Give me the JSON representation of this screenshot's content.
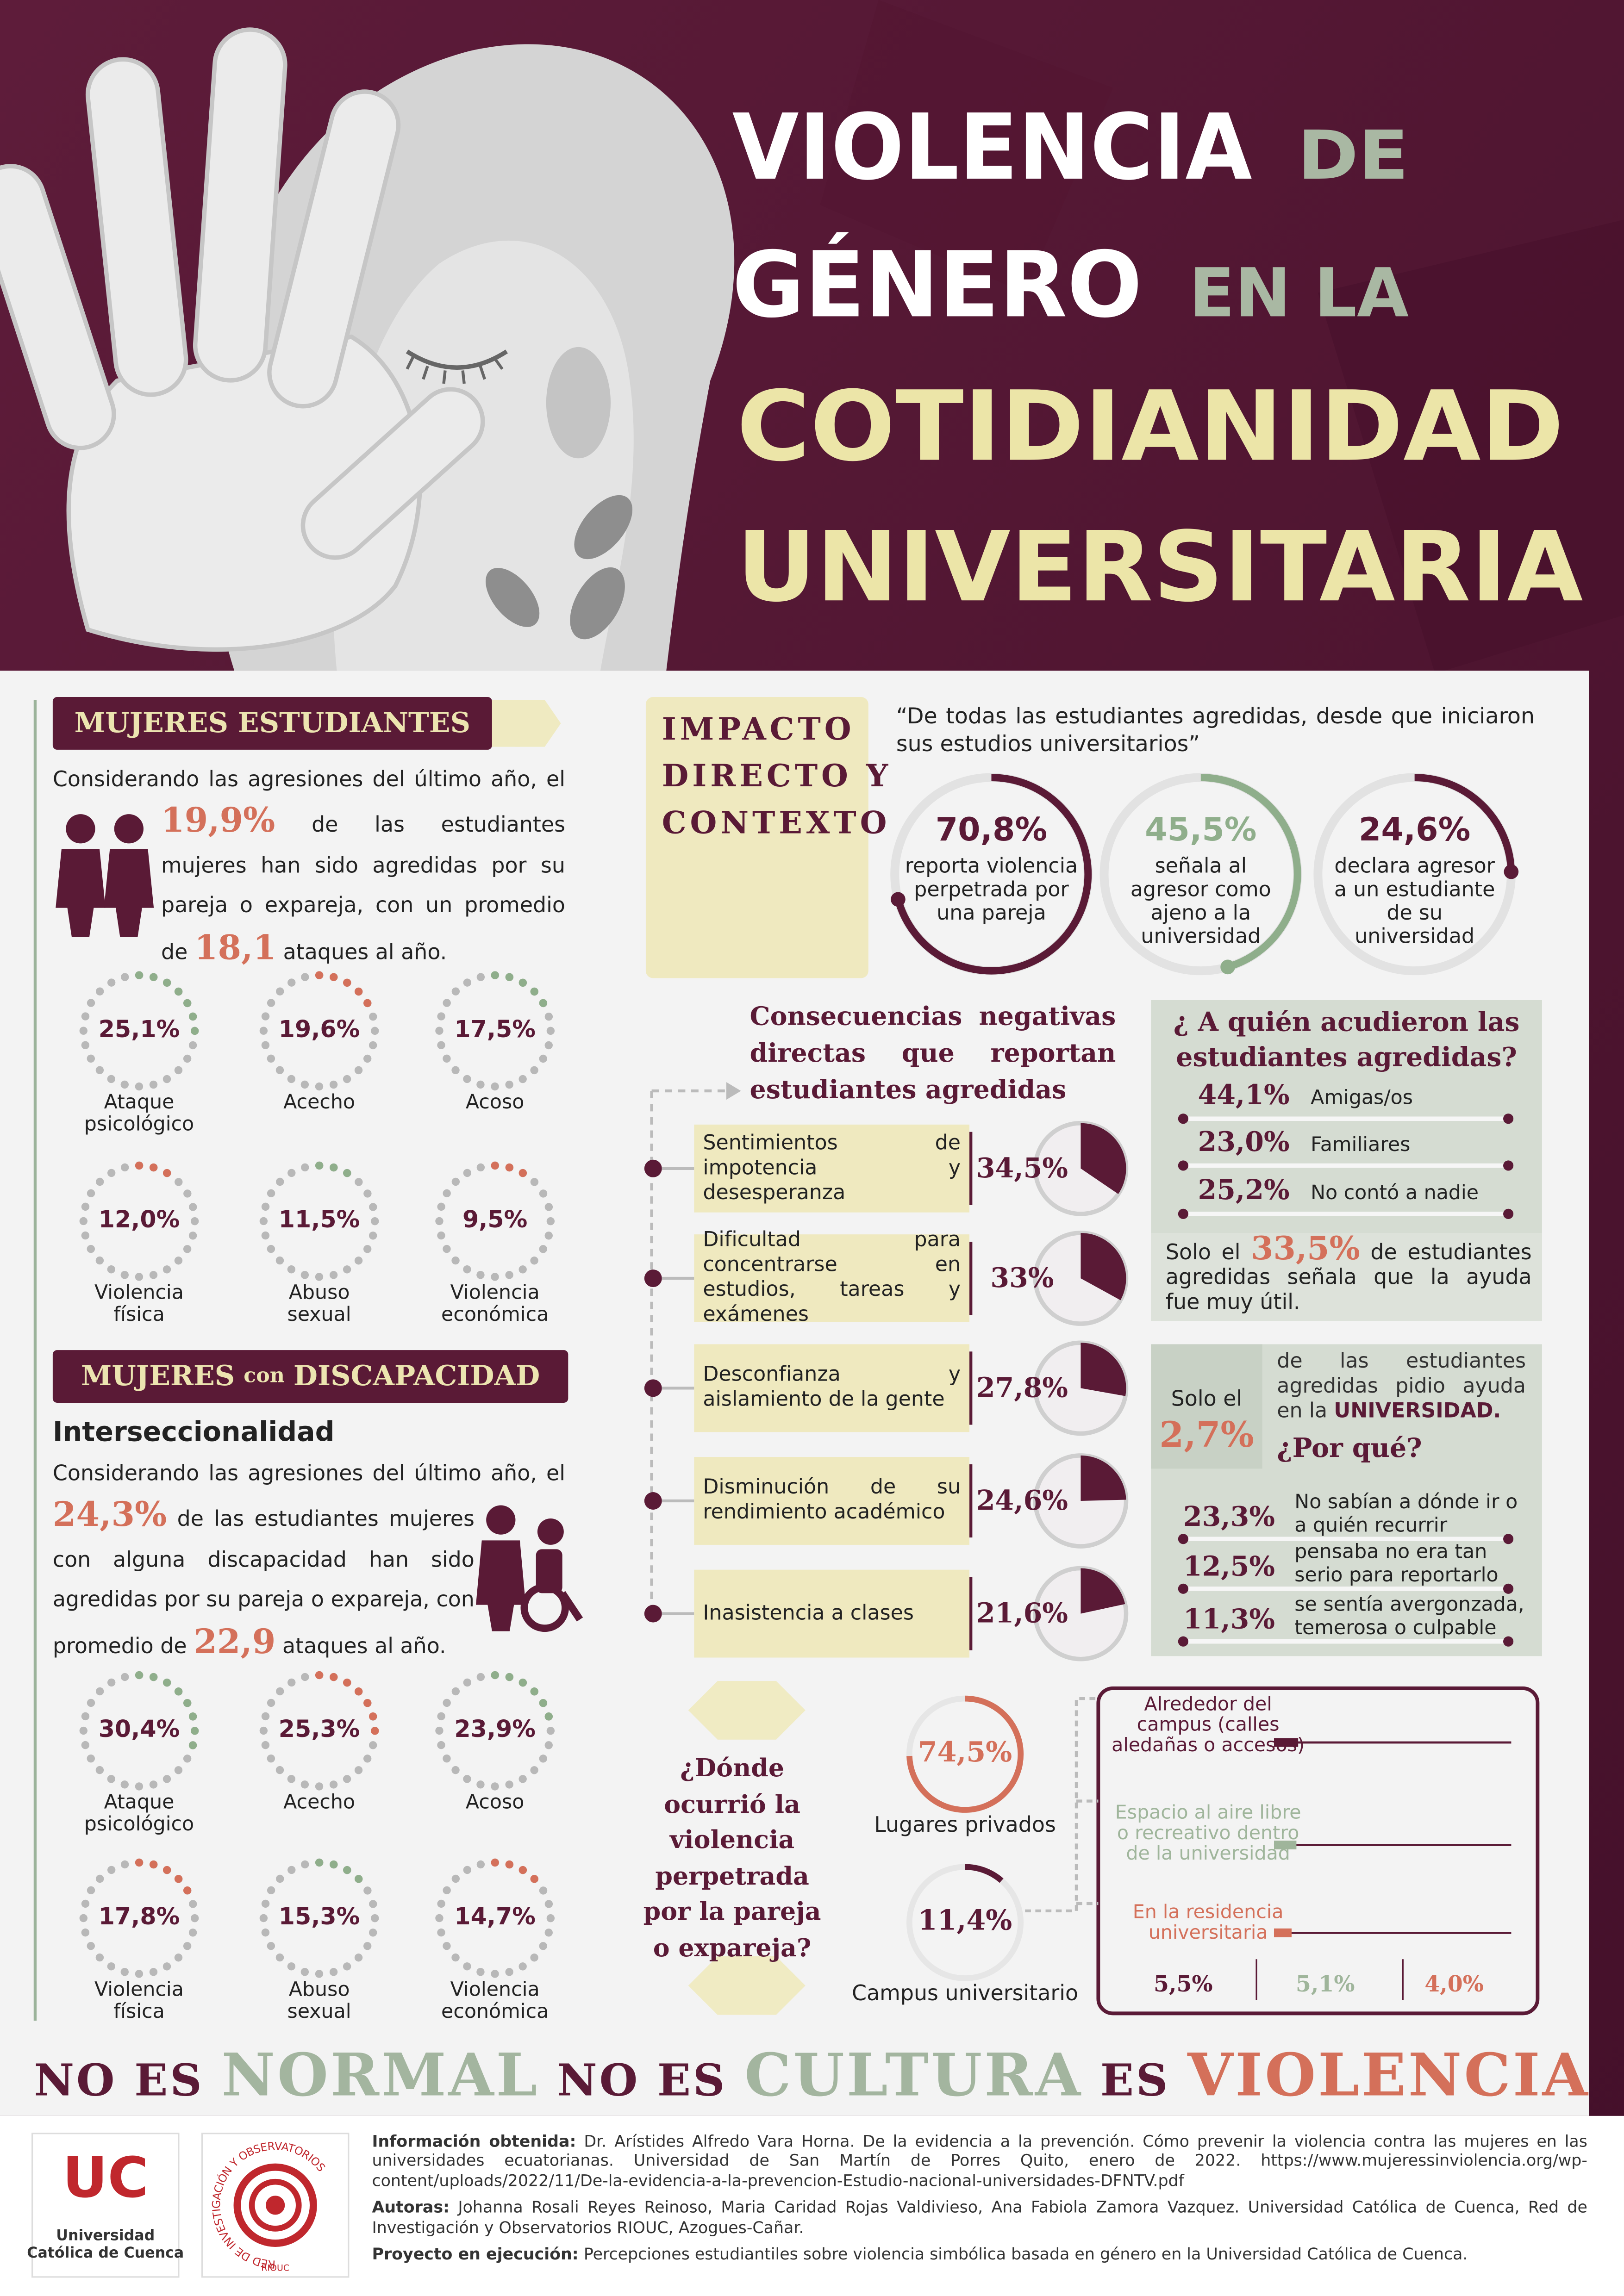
{
  "header": {
    "title": [
      [
        "VIOLENCIA",
        "DE"
      ],
      [
        "GÉNERO",
        "EN LA"
      ],
      [
        "COTIDIANIDAD"
      ],
      [
        "UNIVERSITARIA"
      ]
    ]
  },
  "students": {
    "heading": "MUJERES ESTUDIANTES",
    "intro": "Considerando las agresiones del último año, el",
    "stat": "19,9%",
    "text": "de las estudiantes mujeres han sido agredidas por su pareja o expareja, con un promedio de",
    "average": "18,1",
    "end": "ataques al año.",
    "rings": [
      {
        "value": 25.1,
        "label": "25,1%",
        "name": "Ataque psicológico"
      },
      {
        "value": 19.6,
        "label": "19,6%",
        "name": "Acecho"
      },
      {
        "value": 17.5,
        "label": "17,5%",
        "name": "Acoso"
      },
      {
        "value": 12.0,
        "label": "12,0%",
        "name": "Violencia física"
      },
      {
        "value": 11.5,
        "label": "11,5%",
        "name": "Abuso sexual"
      },
      {
        "value": 9.5,
        "label": "9,5%",
        "name": "Violencia económica"
      }
    ]
  },
  "disability": {
    "heading": [
      "MUJERES",
      "con",
      "DISCAPACIDAD"
    ],
    "subheading": "Interseccionalidad",
    "intro": "Considerando las agresiones del último año, el",
    "stat": "24,3%",
    "text": "de las estudiantes mujeres con alguna discapacidad han sido agredidas por su pareja o expareja, con promedio de",
    "average": "22,9",
    "end": "ataques al año.",
    "rings": [
      {
        "value": 30.4,
        "label": "30,4%",
        "name": "Ataque psicológico"
      },
      {
        "value": 25.3,
        "label": "25,3%",
        "name": "Acecho"
      },
      {
        "value": 23.9,
        "label": "23,9%",
        "name": "Acoso"
      },
      {
        "value": 17.8,
        "label": "17,8%",
        "name": "Violencia física"
      },
      {
        "value": 15.3,
        "label": "15,3%",
        "name": "Abuso sexual"
      },
      {
        "value": 14.7,
        "label": "14,7%",
        "name": "Violencia económica"
      }
    ]
  },
  "impact": {
    "heading": [
      "IMPACTO",
      "DIRECTO Y",
      "CONTEXTO"
    ],
    "quote": "“De todas las estudiantes agredidas, desde que iniciaron sus estudios universitarios”",
    "stats": [
      {
        "value": 70.8,
        "label": "70,8%",
        "text": "reporta violencia perpetrada por una pareja"
      },
      {
        "value": 45.5,
        "label": "45,5%",
        "text": "señala al agresor como ajeno a la universidad"
      },
      {
        "value": 24.6,
        "label": "24,6%",
        "text": "declara agresor a un estudiante de su universidad"
      }
    ]
  },
  "consequences": {
    "heading": "Consecuencias negativas directas que reportan estudiantes agredidas",
    "items": [
      {
        "text": "Sentimientos de impotencia y desesperanza",
        "value": 34.5,
        "label": "34,5%"
      },
      {
        "text": "Dificultad para concentrarse en estudios, tareas y exámenes",
        "value": 33,
        "label": "33%"
      },
      {
        "text": "Desconfianza y aislamiento de la gente",
        "value": 27.8,
        "label": "27,8%"
      },
      {
        "text": "Disminución de su rendimiento académico",
        "value": 24.6,
        "label": "24,6%"
      },
      {
        "text": "Inasistencia a clases",
        "value": 21.6,
        "label": "21,6%"
      }
    ]
  },
  "help": {
    "heading": "¿ A quién acudieron las estudiantes agredidas?",
    "items": [
      {
        "value": "44,1%",
        "text": "Amigas/os"
      },
      {
        "value": "23,0%",
        "text": "Familiares"
      },
      {
        "value": "25,2%",
        "text": "No contó a nadie"
      }
    ],
    "useful": [
      "Solo el",
      "33,5%",
      "de estudiantes agredidas señala que la ayuda fue muy útil."
    ]
  },
  "university": {
    "prefix": "Solo el",
    "stat": "2,7%",
    "text": "de las estudiantes agredidas pidio ayuda en la",
    "emphasis": "UNIVERSIDAD.",
    "question": "¿Por qué?",
    "reasons": [
      {
        "value": "23,3%",
        "text": "No sabían a dónde ir o a quién recurrir"
      },
      {
        "value": "12,5%",
        "text": "pensaba no era tan serio para reportarlo"
      },
      {
        "value": "11,3%",
        "text": "se sentía avergonzada, temerosa o culpable"
      }
    ]
  },
  "where": {
    "question": "¿Dónde ocurrió la violencia perpetrada por la pareja o expareja?",
    "places": [
      {
        "value": 74.5,
        "label": "74,5%",
        "text": "Lugares privados"
      },
      {
        "value": 11.4,
        "label": "11,4%",
        "text": "Campus universitario"
      }
    ],
    "campus": [
      {
        "text": "Alrededor del campus (calles aledañas o accesos)",
        "value": 5.5,
        "label": "5,5%"
      },
      {
        "text": "Espacio al aire libre o recreativo dentro de la universidad",
        "value": 5.1,
        "label": "5,1%"
      },
      {
        "text": "En la residencia universitaria",
        "value": 4.0,
        "label": "4,0%"
      }
    ]
  },
  "slogan": [
    "NO ES",
    "NORMAL",
    "NO ES",
    "CULTURA",
    "ES",
    "VIOLENCIA"
  ],
  "footer": {
    "logo_uc": {
      "mark": "UC",
      "name": [
        "Universidad",
        "Católica de Cuenca"
      ]
    },
    "logo_rio": {
      "ring": "RED DE INVESTIGACIÓN Y OBSERVATORIOS",
      "short": "RIOUC"
    },
    "sources": [
      {
        "label": "Información obtenida:",
        "text": "Dr. Arístides Alfredo Vara Horna. De la evidencia a la prevención. Cómo prevenir la violencia contra las mujeres en las universidades ecuatorianas. Universidad de San Martín de Porres Quito, enero de 2022. https://www.mujeressinviolencia.org/wp-content/uploads/2022/11/De-la-evidencia-a-la-prevencion-Estudio-nacional-universidades-DFNTV.pdf"
      },
      {
        "label": "Autoras:",
        "text": "Johanna Rosali Reyes Reinoso, Maria Caridad Rojas Valdivieso, Ana Fabiola Zamora Vazquez. Universidad Católica de Cuenca, Red de Investigación y Observatorios RIOUC, Azogues-Cañar."
      },
      {
        "label": "Proyecto en ejecución:",
        "text": "Percepciones estudiantiles sobre violencia simbólica basada en género en la Universidad Católica de Cuenca."
      }
    ]
  }
}
